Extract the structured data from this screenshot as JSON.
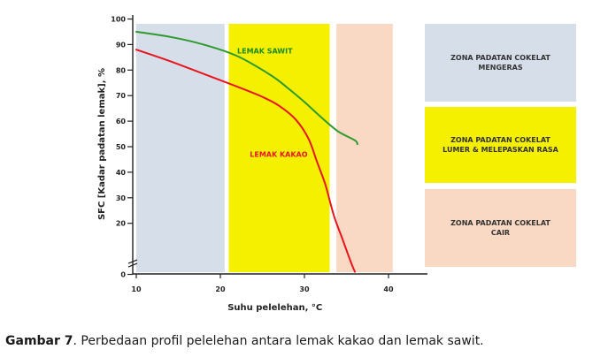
{
  "chart_data": {
    "type": "line",
    "xlabel": "Suhu pelelehan, °C",
    "ylabel": "SFC [Kadar padatan lemak], %",
    "xlim": [
      10,
      45
    ],
    "ylim": [
      0,
      100
    ],
    "y_axis_break": true,
    "grid": false,
    "x_ticks": [
      10,
      20,
      30,
      40
    ],
    "y_ticks": [
      0,
      20,
      30,
      40,
      50,
      60,
      70,
      80,
      90,
      100
    ],
    "bands": [
      {
        "x_start": 10,
        "x_end": 20.5,
        "color": "#d6dfe9"
      },
      {
        "x_start": 21,
        "x_end": 33,
        "color": "#f5f000"
      },
      {
        "x_start": 33.8,
        "x_end": 40.5,
        "color": "#f9d9c3"
      }
    ],
    "series": [
      {
        "name": "LEMAK SAWIT",
        "color": "#2e9a2e",
        "x": [
          10,
          14,
          18,
          22,
          26,
          28,
          30,
          32,
          34,
          36,
          36.3
        ],
        "y": [
          95,
          93,
          90,
          85.5,
          78,
          73,
          67.5,
          61.5,
          56,
          52.5,
          51
        ]
      },
      {
        "name": "LEMAK KAKAO",
        "color": "#e8141e",
        "x": [
          10,
          14,
          18,
          22,
          25,
          27,
          29,
          30.5,
          31.5,
          32.5,
          33.5,
          34.5,
          35.5,
          36
        ],
        "y": [
          88,
          83.5,
          78.5,
          73.5,
          69.5,
          66,
          60.5,
          53,
          44,
          35,
          23,
          14,
          5,
          1
        ]
      }
    ],
    "series_labels": [
      {
        "text": "LEMAK SAWIT",
        "x": 22,
        "y": 87.5,
        "color": "#1a8a1a"
      },
      {
        "text": "LEMAK KAKAO",
        "x": 23.5,
        "y": 47,
        "color": "#e8141e"
      }
    ]
  },
  "legend": [
    {
      "text": "ZONA PADATAN COKELAT\nMENGERAS",
      "color": "#d6dfe9"
    },
    {
      "text": "ZONA PADATAN COKELAT\nLUMER & MELEPASKAN RASA",
      "color": "#f5f000"
    },
    {
      "text": "ZONA PADATAN COKELAT\nCAIR",
      "color": "#f9d9c3"
    }
  ],
  "caption": {
    "label": "Gambar 7",
    "text": ". Perbedaan profil pelelehan antara lemak kakao dan lemak sawit."
  }
}
